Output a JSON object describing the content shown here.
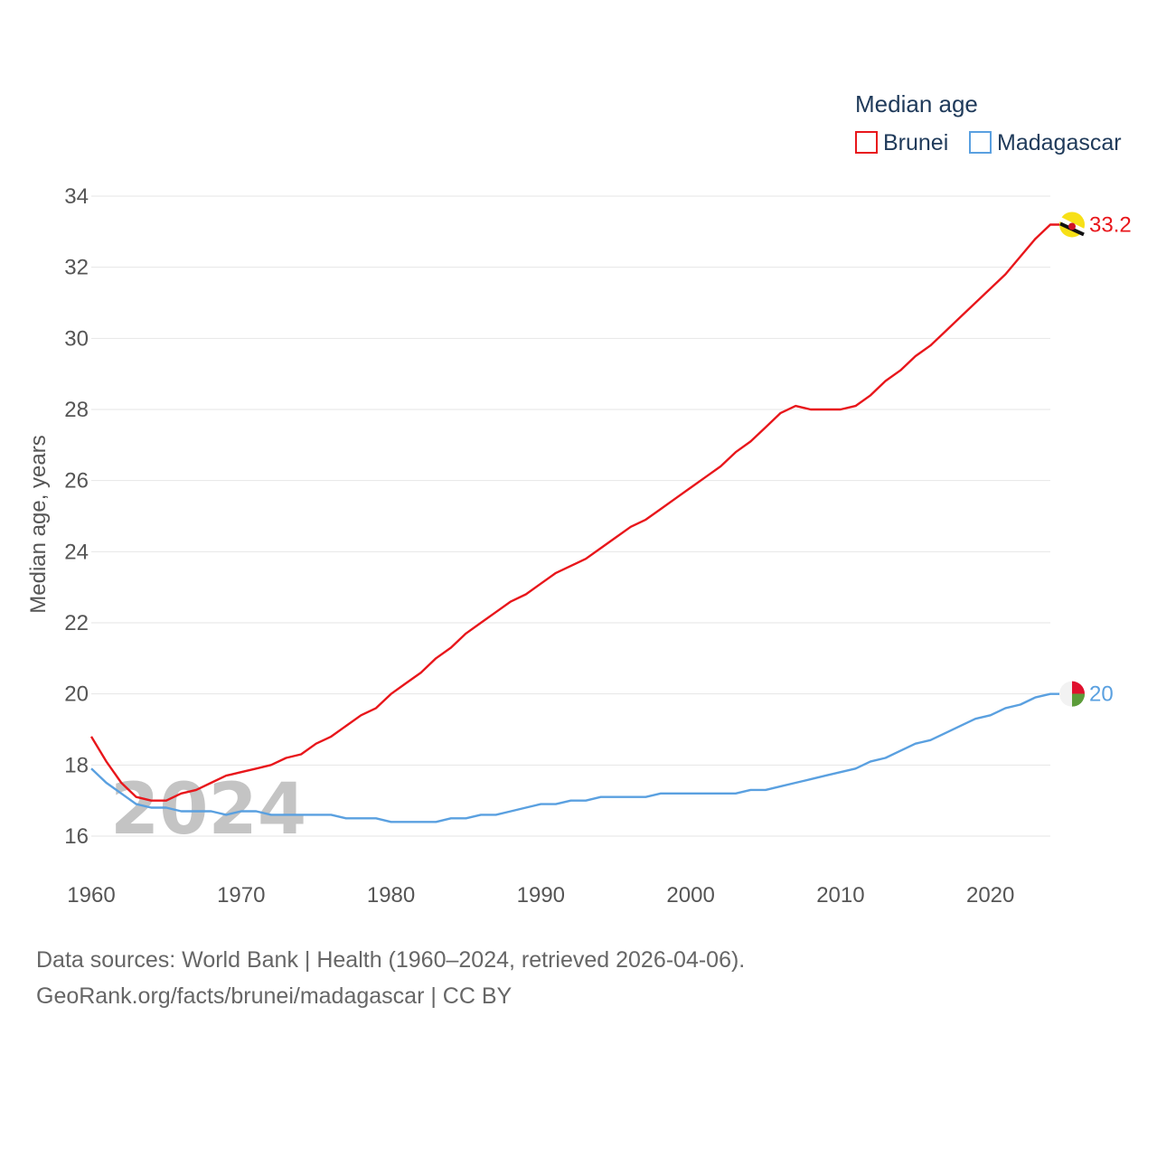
{
  "chart_data": {
    "type": "line",
    "title": "Median age",
    "xlabel": "",
    "ylabel": "Median age, years",
    "xlim": [
      1960,
      2024
    ],
    "ylim": [
      15,
      35
    ],
    "x_ticks": [
      1960,
      1970,
      1980,
      1990,
      2000,
      2010,
      2020
    ],
    "y_ticks": [
      16,
      18,
      20,
      22,
      24,
      26,
      28,
      30,
      32,
      34
    ],
    "grid": true,
    "legend_position": "top-right",
    "current_year_label": "2024",
    "x": [
      1960,
      1961,
      1962,
      1963,
      1964,
      1965,
      1966,
      1967,
      1968,
      1969,
      1970,
      1971,
      1972,
      1973,
      1974,
      1975,
      1976,
      1977,
      1978,
      1979,
      1980,
      1981,
      1982,
      1983,
      1984,
      1985,
      1986,
      1987,
      1988,
      1989,
      1990,
      1991,
      1992,
      1993,
      1994,
      1995,
      1996,
      1997,
      1998,
      1999,
      2000,
      2001,
      2002,
      2003,
      2004,
      2005,
      2006,
      2007,
      2008,
      2009,
      2010,
      2011,
      2012,
      2013,
      2014,
      2015,
      2016,
      2017,
      2018,
      2019,
      2020,
      2021,
      2022,
      2023,
      2024
    ],
    "series": [
      {
        "name": "Brunei",
        "color": "#e8161b",
        "end_label": "33.2",
        "flag_icon": "brunei-flag-icon",
        "values": [
          18.8,
          18.1,
          17.5,
          17.1,
          17.0,
          17.0,
          17.2,
          17.3,
          17.5,
          17.7,
          17.8,
          17.9,
          18.0,
          18.2,
          18.3,
          18.6,
          18.8,
          19.1,
          19.4,
          19.6,
          20.0,
          20.3,
          20.6,
          21.0,
          21.3,
          21.7,
          22.0,
          22.3,
          22.6,
          22.8,
          23.1,
          23.4,
          23.6,
          23.8,
          24.1,
          24.4,
          24.7,
          24.9,
          25.2,
          25.5,
          25.8,
          26.1,
          26.4,
          26.8,
          27.1,
          27.5,
          27.9,
          28.1,
          28.0,
          28.0,
          28.0,
          28.1,
          28.4,
          28.8,
          29.1,
          29.5,
          29.8,
          30.2,
          30.6,
          31.0,
          31.4,
          31.8,
          32.3,
          32.8,
          33.2
        ]
      },
      {
        "name": "Madagascar",
        "color": "#5aa0e0",
        "end_label": "20",
        "flag_icon": "madagascar-flag-icon",
        "values": [
          17.9,
          17.5,
          17.2,
          16.9,
          16.8,
          16.8,
          16.7,
          16.7,
          16.7,
          16.6,
          16.7,
          16.7,
          16.6,
          16.6,
          16.6,
          16.6,
          16.6,
          16.5,
          16.5,
          16.5,
          16.4,
          16.4,
          16.4,
          16.4,
          16.5,
          16.5,
          16.6,
          16.6,
          16.7,
          16.8,
          16.9,
          16.9,
          17.0,
          17.0,
          17.1,
          17.1,
          17.1,
          17.1,
          17.2,
          17.2,
          17.2,
          17.2,
          17.2,
          17.2,
          17.3,
          17.3,
          17.4,
          17.5,
          17.6,
          17.7,
          17.8,
          17.9,
          18.1,
          18.2,
          18.4,
          18.6,
          18.7,
          18.9,
          19.1,
          19.3,
          19.4,
          19.6,
          19.7,
          19.9,
          20.0
        ]
      }
    ]
  },
  "footer": {
    "source_line1": "Data sources: World Bank | Health (1960–2024, retrieved 2026-04-06).",
    "source_line2": "GeoRank.org/facts/brunei/madagascar | CC BY"
  }
}
